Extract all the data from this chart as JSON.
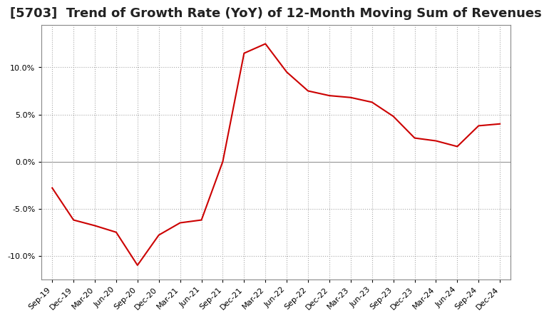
{
  "title": "[5703]  Trend of Growth Rate (YoY) of 12-Month Moving Sum of Revenues",
  "title_fontsize": 13,
  "line_color": "#cc0000",
  "background_color": "#ffffff",
  "grid_color": "#aaaaaa",
  "xlabels": [
    "Sep-19",
    "Dec-19",
    "Mar-20",
    "Jun-20",
    "Sep-20",
    "Dec-20",
    "Mar-21",
    "Jun-21",
    "Sep-21",
    "Dec-21",
    "Mar-22",
    "Jun-22",
    "Sep-22",
    "Dec-22",
    "Mar-23",
    "Jun-23",
    "Sep-23",
    "Dec-23",
    "Mar-24",
    "Jun-24",
    "Sep-24",
    "Dec-24"
  ],
  "yvalues": [
    -2.8,
    -6.2,
    -6.8,
    -7.5,
    -11.0,
    -7.8,
    -6.5,
    -6.2,
    0.0,
    11.5,
    12.5,
    9.5,
    7.5,
    7.0,
    6.8,
    6.3,
    4.8,
    2.5,
    2.2,
    1.6,
    3.8,
    4.0
  ],
  "ylim": [
    -12.5,
    14.5
  ],
  "yticks": [
    -10.0,
    -5.0,
    0.0,
    5.0,
    10.0
  ]
}
